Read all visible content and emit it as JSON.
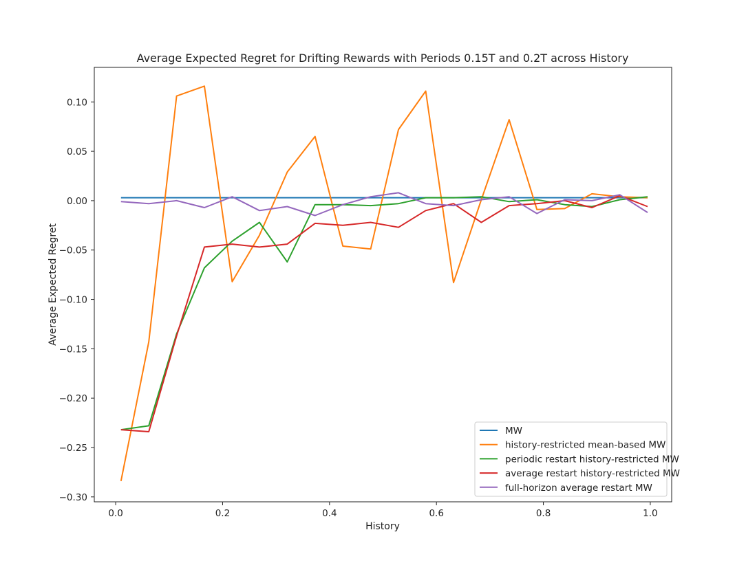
{
  "chart_data": {
    "type": "line",
    "title": "Average Expected Regret for Drifting Rewards with Periods 0.15T and 0.2T across History",
    "xlabel": "History",
    "ylabel": "Average Expected Regret",
    "xlim": [
      -0.04,
      1.04
    ],
    "ylim": [
      -0.305,
      0.135
    ],
    "xticks": [
      0.0,
      0.2,
      0.4,
      0.6,
      0.8,
      1.0
    ],
    "xtick_labels": [
      "0.0",
      "0.2",
      "0.4",
      "0.6",
      "0.8",
      "1.0"
    ],
    "yticks": [
      0.1,
      0.05,
      0.0,
      -0.05,
      -0.1,
      -0.15,
      -0.2,
      -0.25,
      -0.3
    ],
    "ytick_labels": [
      "0.10",
      "0.05",
      "0.00",
      "−0.05",
      "−0.10",
      "−0.15",
      "−0.20",
      "−0.25",
      "−0.30"
    ],
    "grid": false,
    "legend_position": "lower-right",
    "x": [
      0.01,
      0.062,
      0.114,
      0.166,
      0.218,
      0.269,
      0.321,
      0.373,
      0.425,
      0.477,
      0.529,
      0.58,
      0.632,
      0.684,
      0.736,
      0.788,
      0.84,
      0.891,
      0.943,
      0.995
    ],
    "series": [
      {
        "name": "MW",
        "color": "#1f77b4",
        "values": [
          0.003,
          0.003,
          0.003,
          0.003,
          0.003,
          0.003,
          0.003,
          0.003,
          0.003,
          0.003,
          0.003,
          0.003,
          0.003,
          0.003,
          0.003,
          0.003,
          0.003,
          0.003,
          0.003,
          0.003
        ]
      },
      {
        "name": "history-restricted mean-based MW",
        "color": "#ff7f0e",
        "values": [
          -0.284,
          -0.143,
          0.106,
          0.116,
          -0.082,
          -0.035,
          0.029,
          0.065,
          -0.046,
          -0.049,
          0.072,
          0.111,
          -0.083,
          0.001,
          0.082,
          -0.009,
          -0.008,
          0.007,
          0.004,
          0.003
        ]
      },
      {
        "name": "periodic restart history-restricted MW",
        "color": "#2ca02c",
        "values": [
          -0.232,
          -0.228,
          -0.135,
          -0.068,
          -0.041,
          -0.022,
          -0.062,
          -0.004,
          -0.004,
          -0.005,
          -0.003,
          0.003,
          0.003,
          0.004,
          -0.001,
          0.001,
          -0.004,
          -0.006,
          0.001,
          0.004
        ]
      },
      {
        "name": "average restart history-restricted MW",
        "color": "#d62728",
        "values": [
          -0.232,
          -0.234,
          -0.137,
          -0.047,
          -0.044,
          -0.047,
          -0.044,
          -0.023,
          -0.025,
          -0.022,
          -0.027,
          -0.01,
          -0.003,
          -0.022,
          -0.005,
          -0.003,
          0.0,
          -0.007,
          0.005,
          -0.006
        ]
      },
      {
        "name": "full-horizon average restart MW",
        "color": "#9467bd",
        "values": [
          -0.001,
          -0.003,
          0.0,
          -0.007,
          0.004,
          -0.01,
          -0.006,
          -0.015,
          -0.004,
          0.004,
          0.008,
          -0.003,
          -0.005,
          0.001,
          0.004,
          -0.013,
          0.001,
          0.0,
          0.006,
          -0.012
        ]
      }
    ]
  }
}
